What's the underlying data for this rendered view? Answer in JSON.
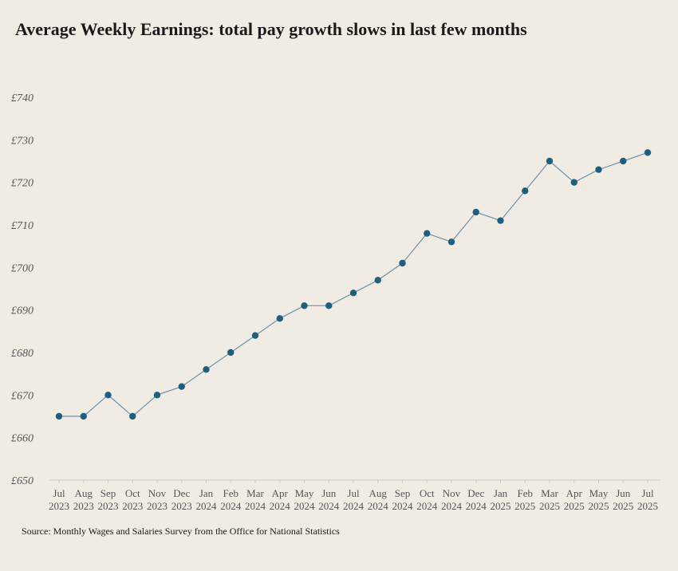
{
  "title": "Average Weekly Earnings: total pay growth slows in last few months",
  "source": "Source: Monthly Wages and Salaries Survey from the Office for National Statistics",
  "colors": {
    "background": "#f0ece4",
    "line": "#6e93a8",
    "marker": "#1f5e7e",
    "axis_text": "#555555"
  },
  "chart_data": {
    "type": "line",
    "title": "Average Weekly Earnings: total pay growth slows in last few months",
    "xlabel": "",
    "ylabel": "",
    "ylim": [
      650,
      740
    ],
    "y_tick_values": [
      650,
      660,
      670,
      680,
      690,
      700,
      710,
      720,
      730,
      740
    ],
    "y_tick_labels": [
      "£650",
      "£660",
      "£670",
      "£680",
      "£690",
      "£700",
      "£710",
      "£720",
      "£730",
      "£740"
    ],
    "grid": false,
    "legend": "none",
    "categories": [
      [
        "Jul",
        "2023"
      ],
      [
        "Aug",
        "2023"
      ],
      [
        "Sep",
        "2023"
      ],
      [
        "Oct",
        "2023"
      ],
      [
        "Nov",
        "2023"
      ],
      [
        "Dec",
        "2023"
      ],
      [
        "Jan",
        "2024"
      ],
      [
        "Feb",
        "2024"
      ],
      [
        "Mar",
        "2024"
      ],
      [
        "Apr",
        "2024"
      ],
      [
        "May",
        "2024"
      ],
      [
        "Jun",
        "2024"
      ],
      [
        "Jul",
        "2024"
      ],
      [
        "Aug",
        "2024"
      ],
      [
        "Sep",
        "2024"
      ],
      [
        "Oct",
        "2024"
      ],
      [
        "Nov",
        "2024"
      ],
      [
        "Dec",
        "2024"
      ],
      [
        "Jan",
        "2025"
      ],
      [
        "Feb",
        "2025"
      ],
      [
        "Mar",
        "2025"
      ],
      [
        "Apr",
        "2025"
      ],
      [
        "May",
        "2025"
      ],
      [
        "Jun",
        "2025"
      ],
      [
        "Jul",
        "2025"
      ]
    ],
    "series": [
      {
        "values": [
          665,
          665,
          670,
          665,
          670,
          672,
          676,
          680,
          684,
          688,
          691,
          691,
          694,
          697,
          701,
          708,
          706,
          713,
          711,
          718,
          725,
          720,
          723,
          725,
          727
        ]
      }
    ]
  }
}
